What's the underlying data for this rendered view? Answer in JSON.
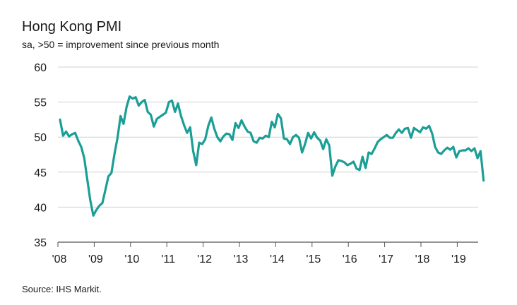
{
  "chart_data": {
    "type": "line",
    "title": "Hong Kong PMI",
    "subtitle": "sa, >50 = improvement since previous month",
    "source": "Source: IHS Markit.",
    "xlabel": "",
    "ylabel": "",
    "ylim": [
      35,
      60
    ],
    "yticks": [
      "60",
      "55",
      "50",
      "45",
      "40",
      "35"
    ],
    "xticks": [
      "'08",
      "'09",
      "'10",
      "'11",
      "'12",
      "'13",
      "'14",
      "'15",
      "'16",
      "'17",
      "'18",
      "'19"
    ],
    "grid": "horizontal",
    "line_color": "#1a9e96",
    "series": [
      {
        "values": [
          52.5,
          50.2,
          50.8,
          50.1,
          50.4,
          50.6,
          49.5,
          48.6,
          47.0,
          44.0,
          41.0,
          38.8,
          39.6,
          40.2,
          40.6,
          42.5,
          44.4,
          44.9,
          47.6,
          49.9,
          53.0,
          51.9,
          54.3,
          55.8,
          55.5,
          55.7,
          54.5,
          55.0,
          55.3,
          53.6,
          53.2,
          51.5,
          52.6,
          52.9,
          53.2,
          53.5,
          55.0,
          55.2,
          53.6,
          54.8,
          53.0,
          51.7,
          50.6,
          51.4,
          48.0,
          46.0,
          49.2,
          49.0,
          49.7,
          51.6,
          52.8,
          51.2,
          50.0,
          49.4,
          50.1,
          50.5,
          50.4,
          49.6,
          52.0,
          51.3,
          52.4,
          51.5,
          50.8,
          50.6,
          49.4,
          49.2,
          49.9,
          49.8,
          50.2,
          50.0,
          52.2,
          51.4,
          53.3,
          52.7,
          49.8,
          49.7,
          49.0,
          50.0,
          50.3,
          49.9,
          47.8,
          49.0,
          50.6,
          49.8,
          50.7,
          49.9,
          49.5,
          48.3,
          49.7,
          48.8,
          44.5,
          45.8,
          46.7,
          46.6,
          46.4,
          46.0,
          46.2,
          46.5,
          45.5,
          45.3,
          47.2,
          45.6,
          47.8,
          47.6,
          48.4,
          49.3,
          49.7,
          50.0,
          50.3,
          49.9,
          49.9,
          50.6,
          51.1,
          50.6,
          51.2,
          51.3,
          49.9,
          51.3,
          51.0,
          50.7,
          51.4,
          51.2,
          51.6,
          50.5,
          48.6,
          47.8,
          47.6,
          48.1,
          48.5,
          48.2,
          48.6,
          47.1,
          48.0,
          48.1,
          48.1,
          48.4,
          48.0,
          48.4,
          47.0,
          48.0,
          43.8
        ]
      }
    ]
  }
}
